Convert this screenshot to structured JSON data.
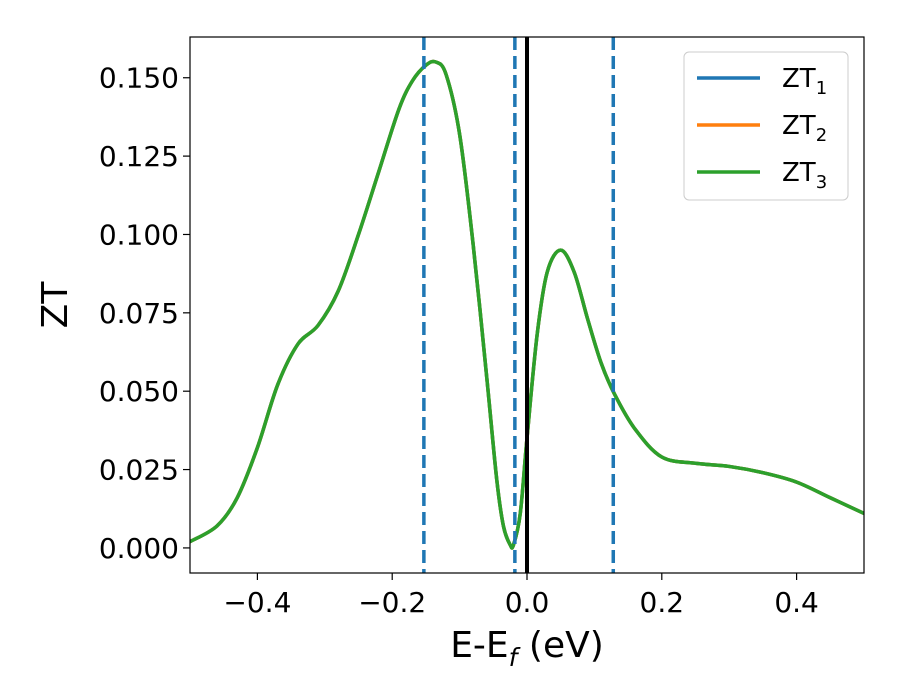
{
  "chart_data": {
    "type": "line",
    "xlabel": {
      "main": "E-E",
      "sub": "f",
      "tail": " (eV)"
    },
    "ylabel": "ZT",
    "xlim": [
      -0.5,
      0.5
    ],
    "ylim": [
      -0.008,
      0.163
    ],
    "x_ticks": [
      -0.4,
      -0.2,
      0.0,
      0.2,
      0.4
    ],
    "x_tick_labels": [
      "−0.4",
      "−0.2",
      "0.0",
      "0.2",
      "0.4"
    ],
    "y_ticks": [
      0.0,
      0.025,
      0.05,
      0.075,
      0.1,
      0.125,
      0.15
    ],
    "y_tick_labels": [
      "0.000",
      "0.025",
      "0.050",
      "0.075",
      "0.100",
      "0.125",
      "0.150"
    ],
    "grid": false,
    "legend_position": "top-right",
    "series": [
      {
        "name": "ZT",
        "name_sub": "1",
        "color": "#1f77b4",
        "x": [
          -0.5,
          -0.46,
          -0.43,
          -0.4,
          -0.37,
          -0.34,
          -0.31,
          -0.28,
          -0.25,
          -0.22,
          -0.19,
          -0.17,
          -0.15,
          -0.135,
          -0.12,
          -0.1,
          -0.08,
          -0.06,
          -0.045,
          -0.035,
          -0.025,
          -0.02,
          -0.01,
          0.0,
          0.015,
          0.03,
          0.05,
          0.07,
          0.09,
          0.11,
          0.13,
          0.16,
          0.2,
          0.25,
          0.3,
          0.35,
          0.4,
          0.45,
          0.5
        ],
        "y": [
          0.002,
          0.007,
          0.016,
          0.032,
          0.052,
          0.065,
          0.071,
          0.082,
          0.1,
          0.12,
          0.14,
          0.149,
          0.154,
          0.155,
          0.151,
          0.132,
          0.097,
          0.055,
          0.022,
          0.007,
          0.001,
          0.001,
          0.011,
          0.035,
          0.068,
          0.088,
          0.095,
          0.088,
          0.073,
          0.059,
          0.049,
          0.038,
          0.029,
          0.027,
          0.026,
          0.024,
          0.021,
          0.016,
          0.011
        ]
      },
      {
        "name": "ZT",
        "name_sub": "2",
        "color": "#ff7f0e",
        "x": [
          -0.5,
          -0.46,
          -0.43,
          -0.4,
          -0.37,
          -0.34,
          -0.31,
          -0.28,
          -0.25,
          -0.22,
          -0.19,
          -0.17,
          -0.15,
          -0.135,
          -0.12,
          -0.1,
          -0.08,
          -0.06,
          -0.045,
          -0.035,
          -0.025,
          -0.02,
          -0.01,
          0.0,
          0.015,
          0.03,
          0.05,
          0.07,
          0.09,
          0.11,
          0.13,
          0.16,
          0.2,
          0.25,
          0.3,
          0.35,
          0.4,
          0.45,
          0.5
        ],
        "y": [
          0.002,
          0.007,
          0.016,
          0.032,
          0.052,
          0.065,
          0.071,
          0.082,
          0.1,
          0.12,
          0.14,
          0.149,
          0.154,
          0.155,
          0.151,
          0.132,
          0.097,
          0.055,
          0.022,
          0.007,
          0.001,
          0.001,
          0.011,
          0.035,
          0.068,
          0.088,
          0.095,
          0.088,
          0.073,
          0.059,
          0.049,
          0.038,
          0.029,
          0.027,
          0.026,
          0.024,
          0.021,
          0.016,
          0.011
        ]
      },
      {
        "name": "ZT",
        "name_sub": "3",
        "color": "#2ca02c",
        "x": [
          -0.5,
          -0.46,
          -0.43,
          -0.4,
          -0.37,
          -0.34,
          -0.31,
          -0.28,
          -0.25,
          -0.22,
          -0.19,
          -0.17,
          -0.15,
          -0.135,
          -0.12,
          -0.1,
          -0.08,
          -0.06,
          -0.045,
          -0.035,
          -0.025,
          -0.02,
          -0.01,
          0.0,
          0.015,
          0.03,
          0.05,
          0.07,
          0.09,
          0.11,
          0.13,
          0.16,
          0.2,
          0.25,
          0.3,
          0.35,
          0.4,
          0.45,
          0.5
        ],
        "y": [
          0.002,
          0.007,
          0.016,
          0.032,
          0.052,
          0.065,
          0.071,
          0.082,
          0.1,
          0.12,
          0.14,
          0.149,
          0.154,
          0.155,
          0.151,
          0.132,
          0.097,
          0.055,
          0.022,
          0.007,
          0.001,
          0.001,
          0.011,
          0.035,
          0.068,
          0.088,
          0.095,
          0.088,
          0.073,
          0.059,
          0.049,
          0.038,
          0.029,
          0.027,
          0.026,
          0.024,
          0.021,
          0.016,
          0.011
        ]
      }
    ],
    "vertical_lines": [
      {
        "x": -0.153,
        "color": "#1f77b4",
        "style": "dashed"
      },
      {
        "x": -0.018,
        "color": "#1f77b4",
        "style": "dashed"
      },
      {
        "x": 0.0,
        "color": "#000000",
        "style": "solid"
      },
      {
        "x": 0.128,
        "color": "#1f77b4",
        "style": "dashed"
      }
    ]
  }
}
